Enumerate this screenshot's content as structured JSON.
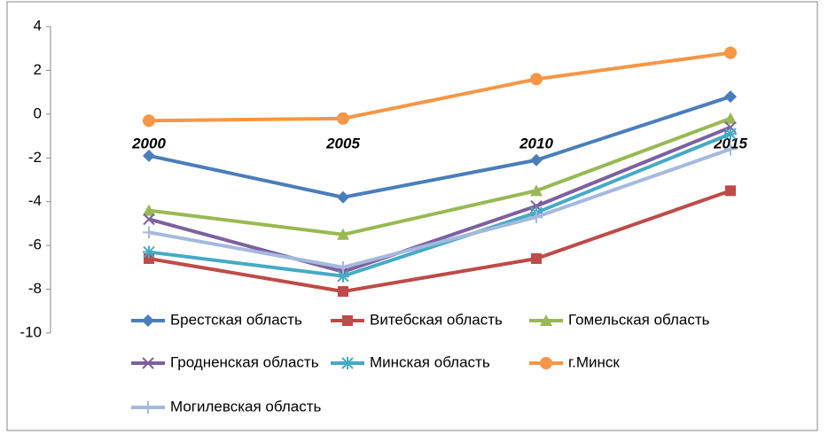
{
  "chart_data": {
    "type": "line",
    "categories": [
      "2000",
      "2005",
      "2010",
      "2015"
    ],
    "series": [
      {
        "name": "Брестская область",
        "color": "#4a7ebb",
        "marker": "diamond",
        "values": [
          -1.9,
          -3.8,
          -2.1,
          0.8
        ]
      },
      {
        "name": "Витебская область",
        "color": "#be4b48",
        "marker": "square",
        "values": [
          -6.6,
          -8.1,
          -6.6,
          -3.5
        ]
      },
      {
        "name": "Гомельская область",
        "color": "#98b954",
        "marker": "triangle",
        "values": [
          -4.4,
          -5.5,
          -3.5,
          -0.2
        ]
      },
      {
        "name": "Гродненская область",
        "color": "#7d60a0",
        "marker": "x",
        "values": [
          -4.8,
          -7.2,
          -4.2,
          -0.6
        ]
      },
      {
        "name": "Минская область",
        "color": "#46aac5",
        "marker": "star",
        "values": [
          -6.3,
          -7.4,
          -4.5,
          -0.9
        ]
      },
      {
        "name": "г.Минск",
        "color": "#f79646",
        "marker": "circle",
        "values": [
          -0.3,
          -0.2,
          1.6,
          2.8
        ]
      },
      {
        "name": "Могилевская область",
        "color": "#a5b9dd",
        "marker": "plus",
        "values": [
          -5.4,
          -7.0,
          -4.7,
          -1.6
        ]
      }
    ],
    "ylim": [
      -10,
      4
    ],
    "yticks": [
      4,
      2,
      0,
      -2,
      -4,
      -6,
      -8,
      -10
    ],
    "grid": false
  }
}
